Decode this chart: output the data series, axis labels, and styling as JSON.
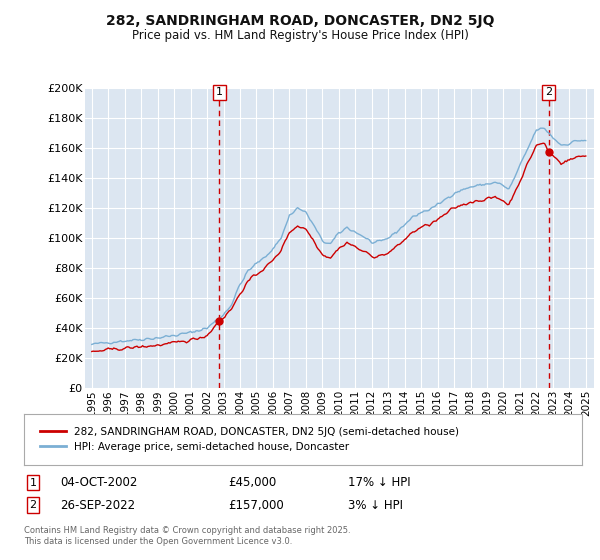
{
  "title1": "282, SANDRINGHAM ROAD, DONCASTER, DN2 5JQ",
  "title2": "Price paid vs. HM Land Registry's House Price Index (HPI)",
  "legend_line1": "282, SANDRINGHAM ROAD, DONCASTER, DN2 5JQ (semi-detached house)",
  "legend_line2": "HPI: Average price, semi-detached house, Doncaster",
  "annotation1_date": "04-OCT-2002",
  "annotation1_price": "£45,000",
  "annotation1_hpi": "17% ↓ HPI",
  "annotation1_year": 2002.75,
  "annotation1_value": 45000,
  "annotation2_date": "26-SEP-2022",
  "annotation2_price": "£157,000",
  "annotation2_hpi": "3% ↓ HPI",
  "annotation2_year": 2022.75,
  "annotation2_value": 157000,
  "background_color": "#ffffff",
  "plot_bg_color": "#dce6f1",
  "grid_color": "#ffffff",
  "red_line_color": "#cc0000",
  "blue_line_color": "#7bafd4",
  "dashed_line_color": "#cc0000",
  "footer_text": "Contains HM Land Registry data © Crown copyright and database right 2025.\nThis data is licensed under the Open Government Licence v3.0.",
  "ylim": [
    0,
    200000
  ],
  "yticks": [
    0,
    20000,
    40000,
    60000,
    80000,
    100000,
    120000,
    140000,
    160000,
    180000,
    200000
  ]
}
